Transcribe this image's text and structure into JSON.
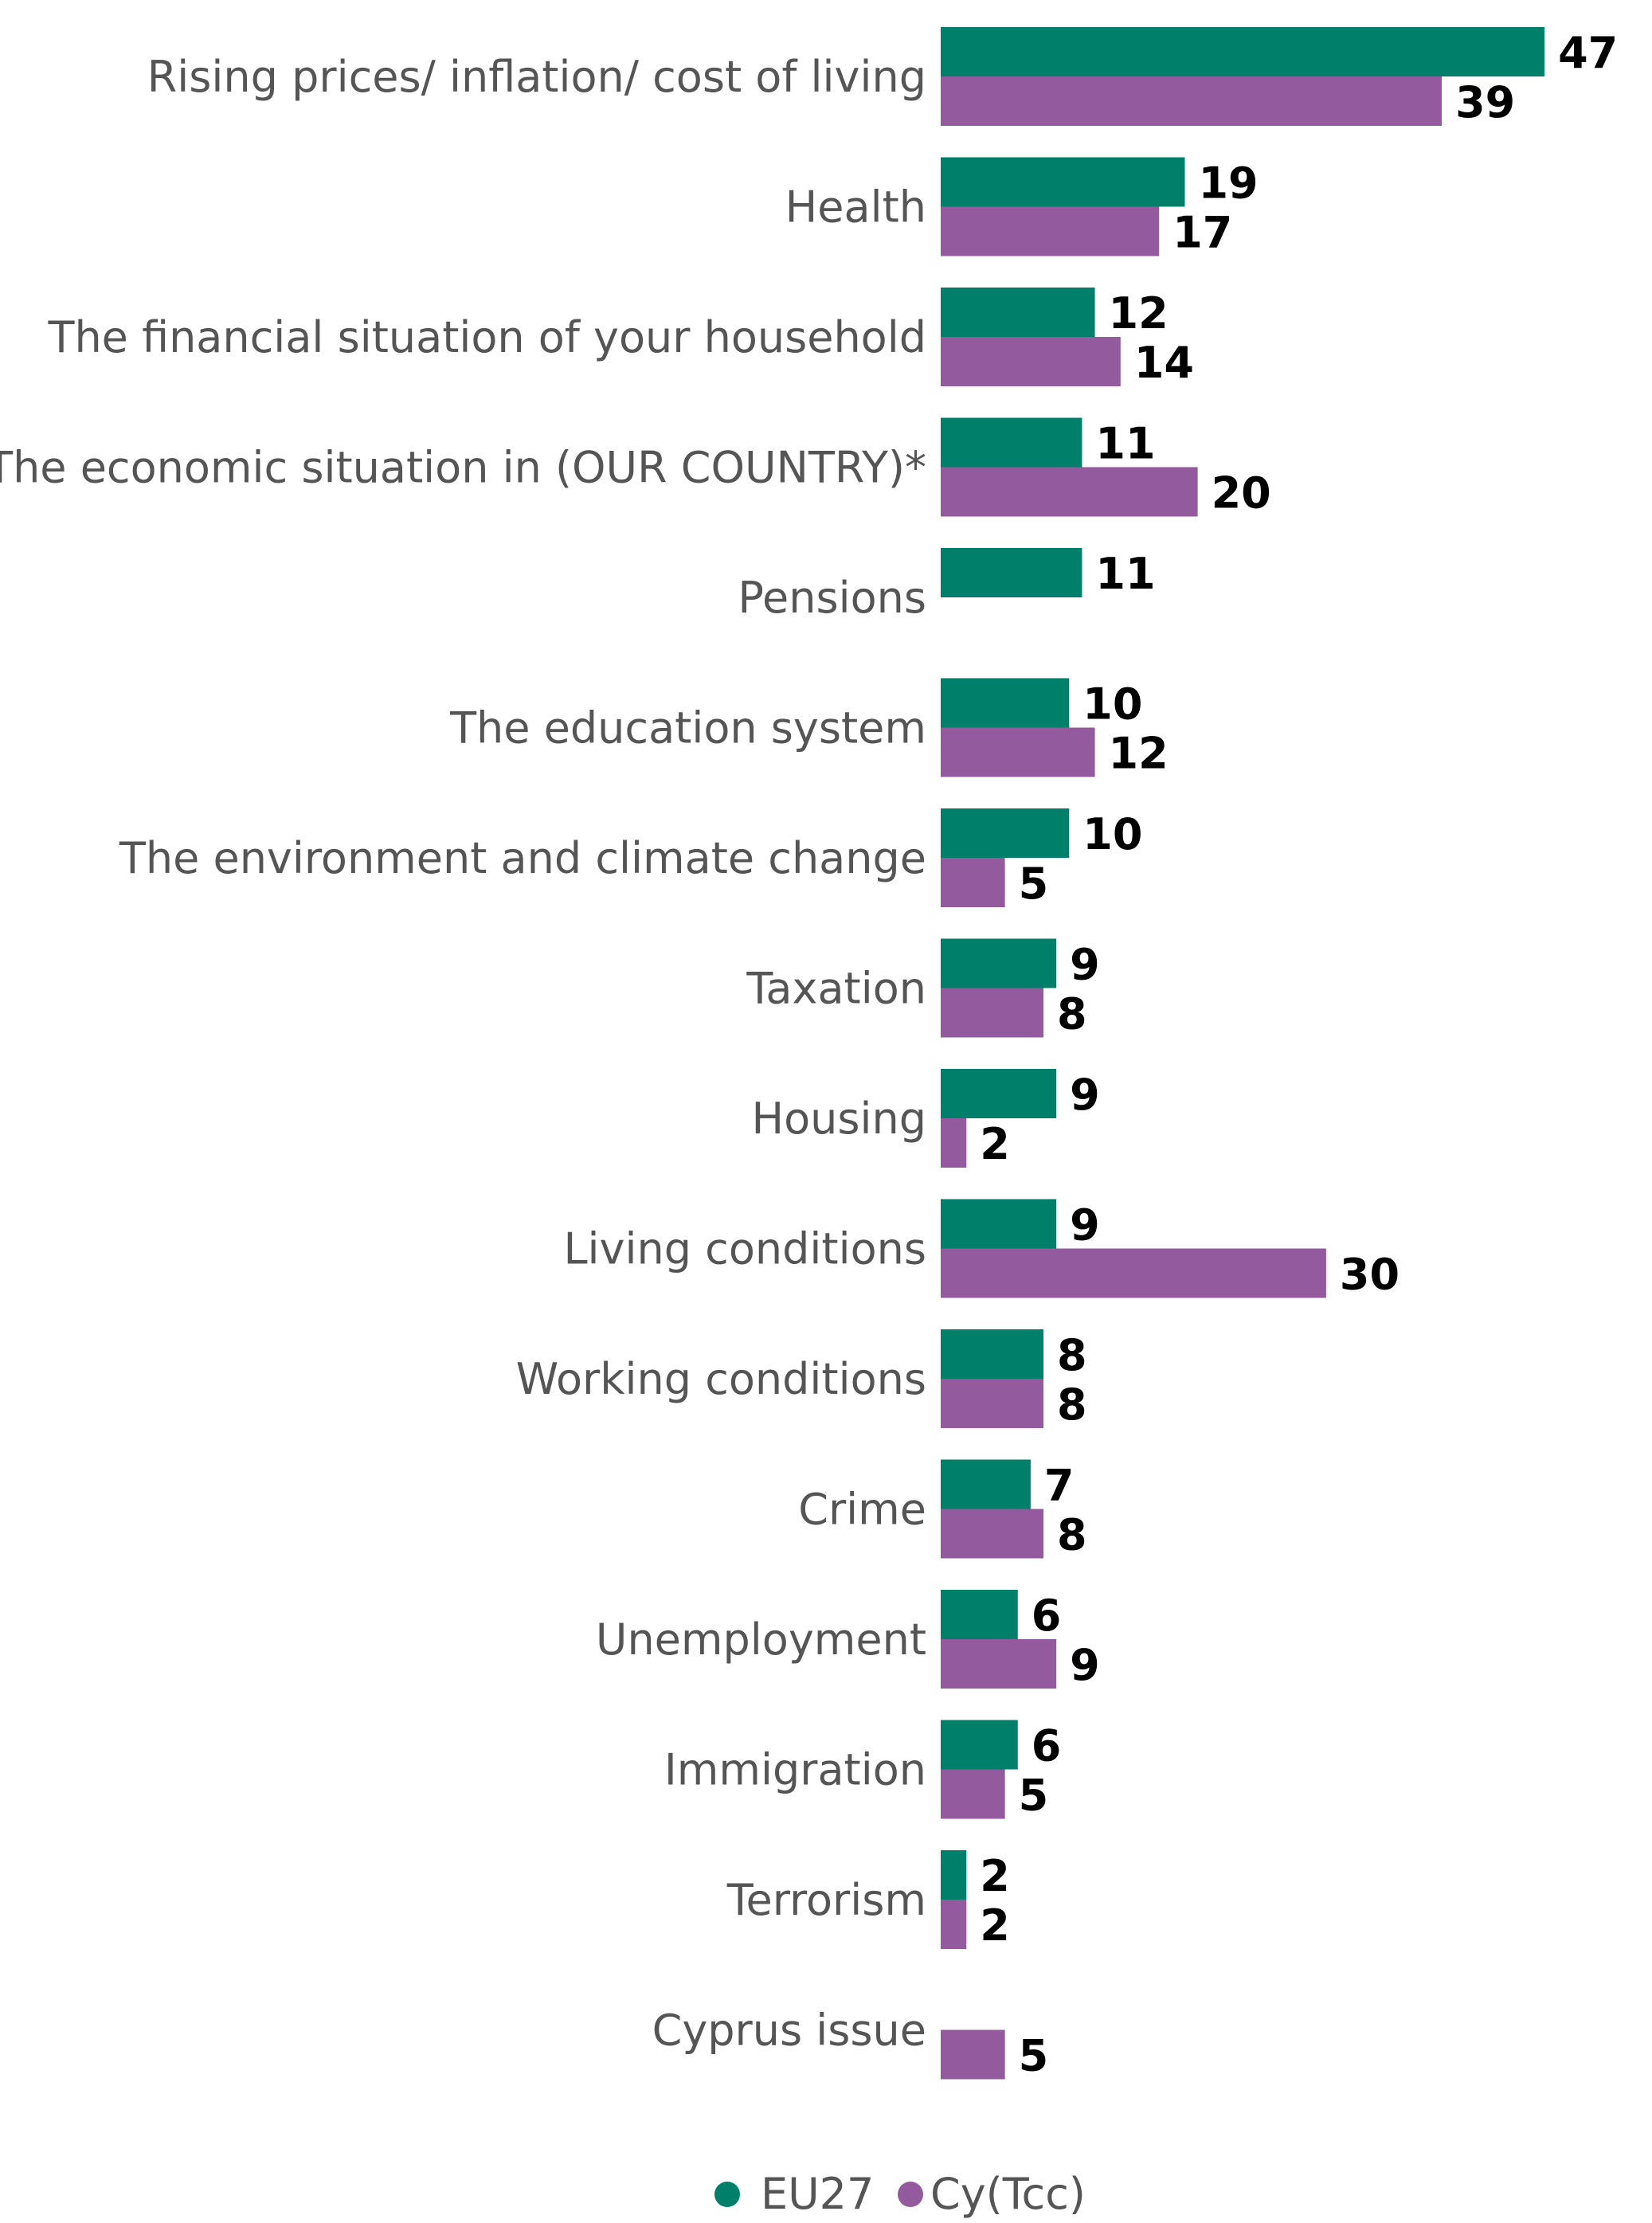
{
  "chart_data": {
    "type": "bar",
    "orientation": "horizontal",
    "categories": [
      "Rising prices/ inflation/ cost of living",
      "Health",
      "The financial situation of your household",
      "The economic situation in (OUR COUNTRY)*",
      "Pensions",
      "The education system",
      "The environment and climate change",
      "Taxation",
      "Housing",
      "Living conditions",
      "Working conditions",
      "Crime",
      "Unemployment",
      "Immigration",
      "Terrorism",
      "Cyprus issue"
    ],
    "series": [
      {
        "name": "EU27",
        "color": "#00806A",
        "values": [
          47,
          19,
          12,
          11,
          11,
          10,
          10,
          9,
          9,
          9,
          8,
          7,
          6,
          6,
          2,
          null
        ]
      },
      {
        "name": "Cy(Tcc)",
        "color": "#935A9E",
        "values": [
          39,
          17,
          14,
          20,
          null,
          12,
          5,
          8,
          2,
          30,
          8,
          8,
          9,
          5,
          2,
          5
        ]
      }
    ],
    "xlim": [
      0,
      47
    ],
    "title": "",
    "xlabel": "",
    "ylabel": "",
    "grid": false,
    "legend_position": "bottom-center"
  }
}
